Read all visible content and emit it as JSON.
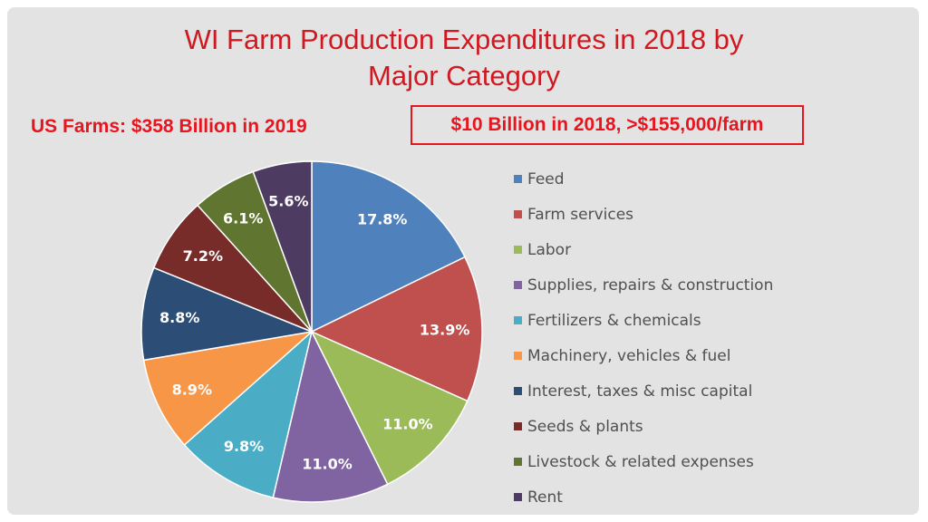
{
  "title_lines": [
    "WI Farm Production Expenditures in 2018 by",
    "Major Category"
  ],
  "us_farms_text": "US Farms: $358 Billion in 2019",
  "boxed_text": "$10 Billion in 2018, >$155,000/farm",
  "chart_data": {
    "type": "pie",
    "title": "WI Farm Production Expenditures in 2018 by Major Category",
    "legend_position": "right",
    "slices": [
      {
        "label": "Feed",
        "value": 17.8,
        "display": "17.8%",
        "color": "#4f81bd"
      },
      {
        "label": "Farm services",
        "value": 13.9,
        "display": "13.9%",
        "color": "#c0504d"
      },
      {
        "label": "Labor",
        "value": 11.0,
        "display": "11.0%",
        "color": "#9bbb59"
      },
      {
        "label": "Supplies, repairs & construction",
        "value": 11.0,
        "display": "11.0%",
        "color": "#8064a2"
      },
      {
        "label": "Fertilizers & chemicals",
        "value": 9.8,
        "display": "9.8%",
        "color": "#4bacc6"
      },
      {
        "label": "Machinery, vehicles & fuel",
        "value": 8.9,
        "display": "8.9%",
        "color": "#f79646"
      },
      {
        "label": "Interest, taxes & misc capital",
        "value": 8.8,
        "display": "8.8%",
        "color": "#2c4d75"
      },
      {
        "label": "Seeds & plants",
        "value": 7.2,
        "display": "7.2%",
        "color": "#772c2a"
      },
      {
        "label": "Livestock & related expenses",
        "value": 6.1,
        "display": "6.1%",
        "color": "#5f7530"
      },
      {
        "label": "Rent",
        "value": 5.6,
        "display": "5.6%",
        "color": "#4d3b62"
      }
    ]
  }
}
